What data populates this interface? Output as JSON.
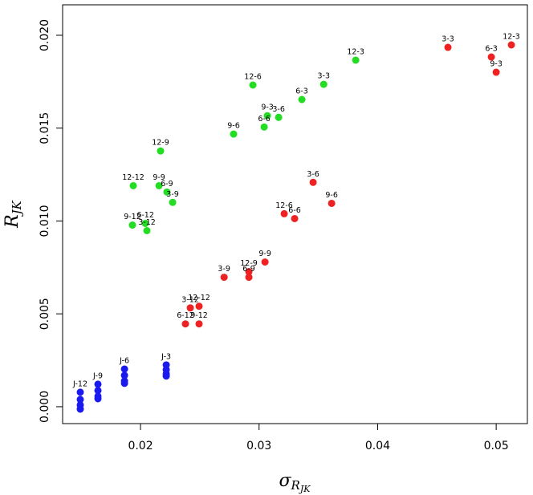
{
  "chart_data": {
    "type": "scatter",
    "xlabel": {
      "base": "σ",
      "sub": "R",
      "subsub": "JK"
    },
    "ylabel": {
      "base": "R",
      "sub": "JK"
    },
    "xlim": [
      0.01343,
      0.05263
    ],
    "ylim": [
      -0.00091,
      0.02164
    ],
    "xticks": [
      0.02,
      0.03,
      0.04,
      0.05
    ],
    "yticks": [
      {
        "value": 0,
        "label": "0.000"
      },
      0.005,
      {
        "value": 0.01,
        "label": "0.010"
      },
      0.015,
      {
        "value": 0.02,
        "label": "0.020"
      }
    ],
    "series": [
      {
        "color": "#22dd22",
        "x": [
          0.03815,
          0.03545,
          0.02948,
          0.03361,
          0.0307,
          0.03165,
          0.03043,
          0.02785,
          0.02169,
          0.01939,
          0.02156,
          0.02223,
          0.02271,
          0.02041,
          0.01932,
          0.02054
        ],
        "values": [
          0.01866,
          0.01736,
          0.01732,
          0.01654,
          0.01567,
          0.01558,
          0.01506,
          0.01468,
          0.01377,
          0.0119,
          0.0119,
          0.01156,
          0.011,
          0.00987,
          0.00978,
          0.00948
        ],
        "labels": [
          "12-3",
          "3-3",
          "12-6",
          "6-3",
          "9-3",
          "3-6",
          "6-6",
          "9-6",
          "12-9",
          "12-12",
          "9-9",
          "6-9",
          "3-9",
          "6-12",
          "9-12",
          "3-12"
        ]
      },
      {
        "color": "#ee2222",
        "x": [
          0.05128,
          0.04593,
          0.04959,
          0.05,
          0.03456,
          0.03612,
          0.03212,
          0.033,
          0.0305,
          0.02914,
          0.02914,
          0.02705,
          0.0242,
          0.02494,
          0.02379,
          0.02494
        ],
        "values": [
          0.01948,
          0.01935,
          0.01883,
          0.01801,
          0.01208,
          0.01095,
          0.01039,
          0.01013,
          0.00779,
          0.00727,
          0.00697,
          0.00697,
          0.00532,
          0.00541,
          0.00446,
          0.00446
        ],
        "labels": [
          "12-3",
          "3-3",
          "6-3",
          "9-3",
          "3-6",
          "9-6",
          "12-6",
          "6-6",
          "9-9",
          "12-9",
          "6-9",
          "3-9",
          "3-12",
          "12-12",
          "6-12",
          "9-12"
        ]
      },
      {
        "color": "#1a1aee",
        "x": [
          0.01492,
          0.01492,
          0.01492,
          0.01492,
          0.01641,
          0.01641,
          0.01641,
          0.01641,
          0.01865,
          0.01865,
          0.01865,
          0.01865,
          0.02217,
          0.02217,
          0.02217,
          0.02217
        ],
        "values": [
          0.00078,
          0.00039,
          9e-05,
          -0.00013,
          0.00121,
          0.00087,
          0.00056,
          0.00043,
          0.00203,
          0.00169,
          0.00139,
          0.00126,
          0.00225,
          0.00199,
          0.00177,
          0.00165
        ],
        "labels": [
          "J-12",
          null,
          null,
          null,
          "J-9",
          null,
          null,
          null,
          "J-6",
          null,
          null,
          null,
          "J-3",
          null,
          null,
          null
        ]
      }
    ]
  }
}
